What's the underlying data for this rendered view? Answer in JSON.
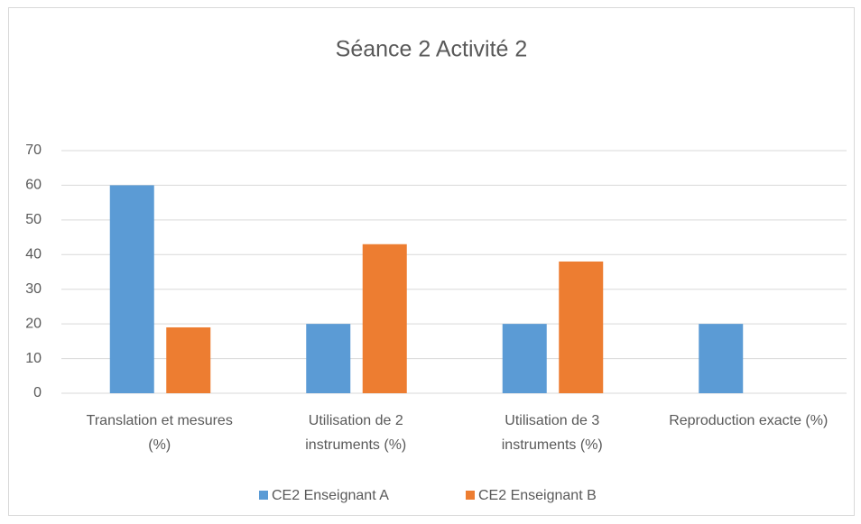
{
  "chart_data": {
    "type": "bar",
    "title": "Séance 2 Activité 2",
    "categories": [
      "Translation et mesures (%)",
      "Utilisation de 2 instruments (%)",
      "Utilisation de 3 instruments (%)",
      "Reproduction exacte (%)"
    ],
    "series": [
      {
        "name": "CE2 Enseignant A",
        "color": "#5b9bd5",
        "values": [
          60,
          20,
          20,
          20
        ]
      },
      {
        "name": "CE2 Enseignant B",
        "color": "#ed7d31",
        "values": [
          19,
          43,
          38,
          0
        ]
      }
    ],
    "ylim": [
      0,
      70
    ],
    "yticks": [
      0,
      10,
      20,
      30,
      40,
      50,
      60,
      70
    ],
    "grid": true,
    "legend": "bottom"
  }
}
